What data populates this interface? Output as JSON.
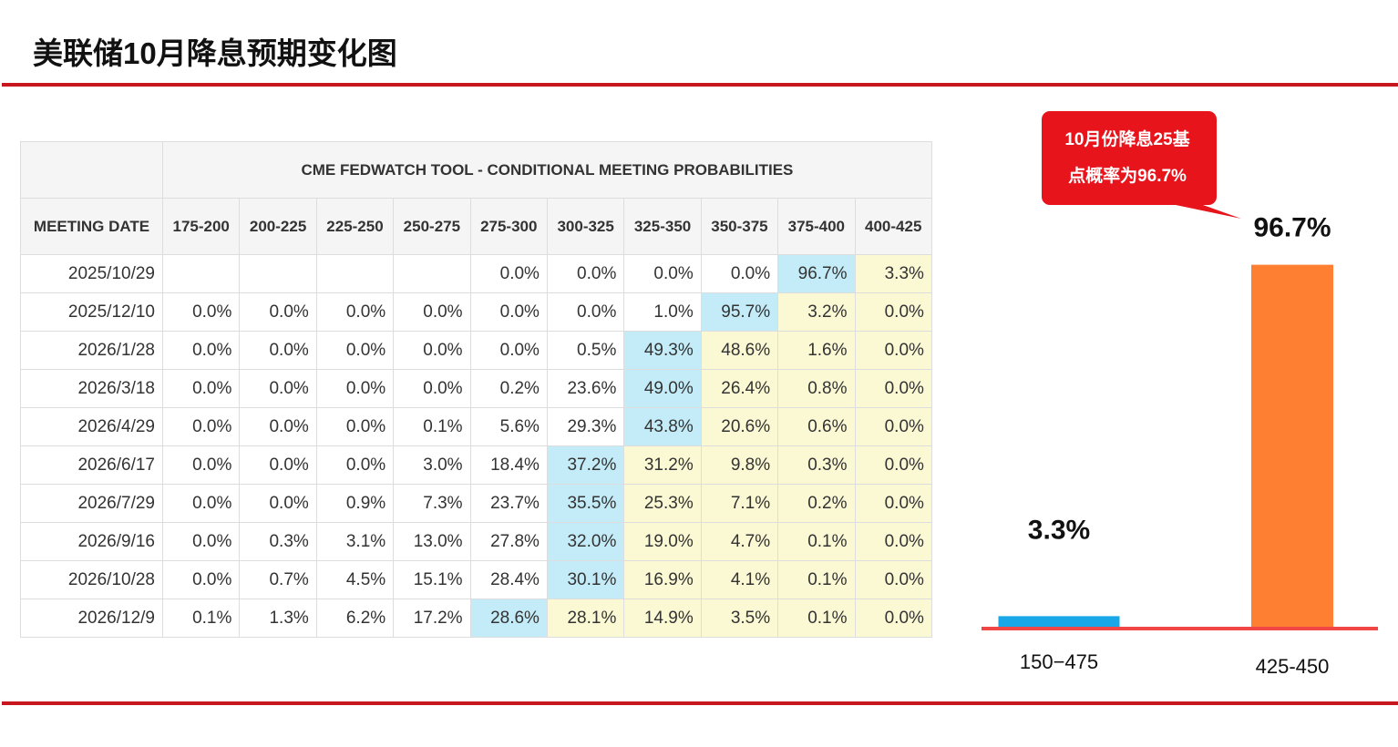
{
  "header": {
    "title": "美联储10月降息预期变化图"
  },
  "table": {
    "caption": "CME FEDWATCH TOOL - CONDITIONAL MEETING PROBABILITIES",
    "columns": [
      "MEETING DATE",
      "175-200",
      "200-225",
      "225-250",
      "250-275",
      "275-300",
      "300-325",
      "325-350",
      "350-375",
      "375-400",
      "400-425"
    ],
    "rows": [
      [
        "2025/10/29",
        null,
        null,
        null,
        null,
        "0.0%",
        "0.0%",
        "0.0%",
        "0.0%",
        "96.7%",
        "3.3%"
      ],
      [
        "2025/12/10",
        "0.0%",
        "0.0%",
        "0.0%",
        "0.0%",
        "0.0%",
        "0.0%",
        "1.0%",
        "95.7%",
        "3.2%",
        "0.0%"
      ],
      [
        "2026/1/28",
        "0.0%",
        "0.0%",
        "0.0%",
        "0.0%",
        "0.0%",
        "0.5%",
        "49.3%",
        "48.6%",
        "1.6%",
        "0.0%"
      ],
      [
        "2026/3/18",
        "0.0%",
        "0.0%",
        "0.0%",
        "0.0%",
        "0.2%",
        "23.6%",
        "49.0%",
        "26.4%",
        "0.8%",
        "0.0%"
      ],
      [
        "2026/4/29",
        "0.0%",
        "0.0%",
        "0.0%",
        "0.1%",
        "5.6%",
        "29.3%",
        "43.8%",
        "20.6%",
        "0.6%",
        "0.0%"
      ],
      [
        "2026/6/17",
        "0.0%",
        "0.0%",
        "0.0%",
        "3.0%",
        "18.4%",
        "37.2%",
        "31.2%",
        "9.8%",
        "0.3%",
        "0.0%"
      ],
      [
        "2026/7/29",
        "0.0%",
        "0.0%",
        "0.9%",
        "7.3%",
        "23.7%",
        "35.5%",
        "25.3%",
        "7.1%",
        "0.2%",
        "0.0%"
      ],
      [
        "2026/9/16",
        "0.0%",
        "0.3%",
        "3.1%",
        "13.0%",
        "27.8%",
        "32.0%",
        "19.0%",
        "4.7%",
        "0.1%",
        "0.0%"
      ],
      [
        "2026/10/28",
        "0.0%",
        "0.7%",
        "4.5%",
        "15.1%",
        "28.4%",
        "30.1%",
        "16.9%",
        "4.1%",
        "0.1%",
        "0.0%"
      ],
      [
        "2026/12/9",
        "0.1%",
        "1.3%",
        "6.2%",
        "17.2%",
        "28.6%",
        "28.1%",
        "14.9%",
        "3.5%",
        "0.1%",
        "0.0%"
      ]
    ],
    "highlight_colors": {
      "max": "#c4ecf8",
      "above": "#fbf8d4"
    }
  },
  "chart_data": {
    "type": "bar",
    "categories": [
      "150−475",
      "425-450"
    ],
    "values": [
      3.3,
      96.7
    ],
    "value_labels": [
      "3.3%",
      "96.7%"
    ],
    "colors": [
      "#1aa7e8",
      "#ff7f32"
    ],
    "ylim": [
      0,
      100
    ],
    "annotation": [
      "10月份降息25基",
      "点概率为96.7%"
    ]
  }
}
